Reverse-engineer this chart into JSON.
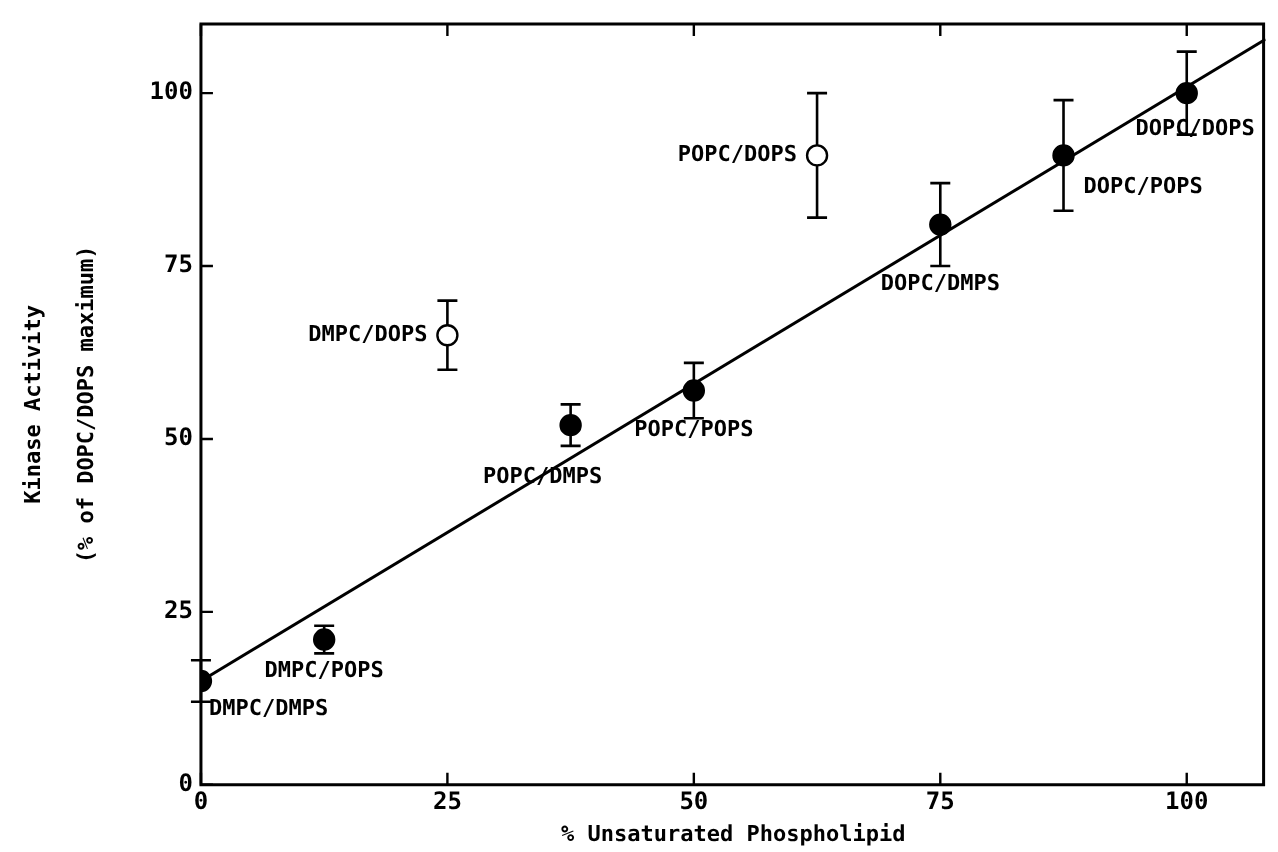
{
  "chart_data": {
    "type": "scatter",
    "xlabel": "% Unsaturated Phospholipid",
    "ylabel": "Kinase Activity\n(% of DOPC/DOPS maximum)",
    "xlim": [
      0,
      108
    ],
    "ylim": [
      0,
      110
    ],
    "xticks": [
      0,
      25,
      50,
      75,
      100
    ],
    "yticks": [
      0,
      25,
      50,
      75,
      100
    ],
    "grid": false,
    "legend": false,
    "marker": "circle",
    "series": [
      {
        "color": "#000000",
        "x": [
          0,
          12.5,
          37.5,
          50,
          75,
          87.5,
          100
        ],
        "values": [
          15,
          21,
          52,
          57,
          81,
          91,
          100
        ],
        "errors": [
          3,
          2,
          3,
          4,
          6,
          8,
          6
        ]
      },
      {
        "color": "#ffffff",
        "x": [
          25,
          62.5
        ],
        "values": [
          65,
          91
        ],
        "errors": [
          5,
          9
        ]
      },
      {
        "type": "line",
        "marker": "none",
        "color": "#000000",
        "x": [
          0,
          108
        ],
        "values": [
          15,
          107.8
        ]
      }
    ],
    "annotations": [
      {
        "text": "DMPC/DMPS",
        "x": 0,
        "y": 15
      },
      {
        "text": "DMPC/POPS",
        "x": 12.5,
        "y": 21
      },
      {
        "text": "DMPC/DOPS",
        "x": 25,
        "y": 65
      },
      {
        "text": "POPC/DMPS",
        "x": 37.5,
        "y": 52
      },
      {
        "text": "POPC/POPS",
        "x": 50,
        "y": 57
      },
      {
        "text": "POPC/DOPS",
        "x": 62.5,
        "y": 91
      },
      {
        "text": "DOPC/DMPS",
        "x": 75,
        "y": 81
      },
      {
        "text": "DOPC/POPS",
        "x": 87.5,
        "y": 91
      },
      {
        "text": "DOPC/DOPS",
        "x": 100,
        "y": 100
      }
    ]
  }
}
